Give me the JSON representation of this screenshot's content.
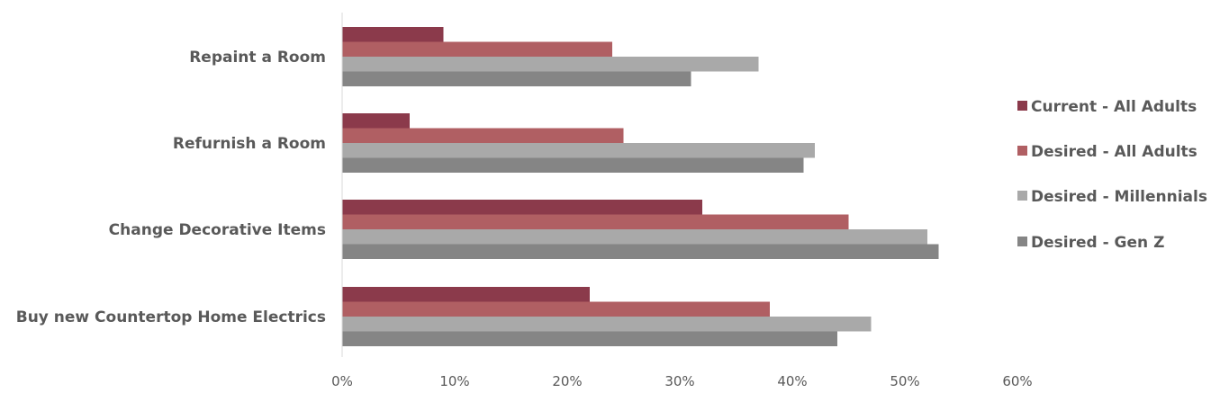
{
  "chart_data": {
    "type": "bar",
    "orientation": "horizontal",
    "categories": [
      "Repaint a Room",
      "Refurnish a Room",
      "Change Decorative Items",
      "Buy new Countertop Home Electrics"
    ],
    "series": [
      {
        "name": "Current - All Adults",
        "color": "#8b3a4b",
        "values": [
          9,
          6,
          32,
          22
        ]
      },
      {
        "name": "Desired - All Adults",
        "color": "#b05f63",
        "values": [
          24,
          25,
          45,
          38
        ]
      },
      {
        "name": "Desired - Millennials",
        "color": "#a9a9a9",
        "values": [
          37,
          42,
          52,
          47
        ]
      },
      {
        "name": "Desired - Gen Z",
        "color": "#858585",
        "values": [
          31,
          41,
          53,
          44
        ]
      }
    ],
    "xlim": [
      0,
      60
    ],
    "x_ticks": [
      "0%",
      "10%",
      "20%",
      "30%",
      "40%",
      "50%",
      "60%"
    ],
    "legend_position": "right",
    "grid": false
  }
}
